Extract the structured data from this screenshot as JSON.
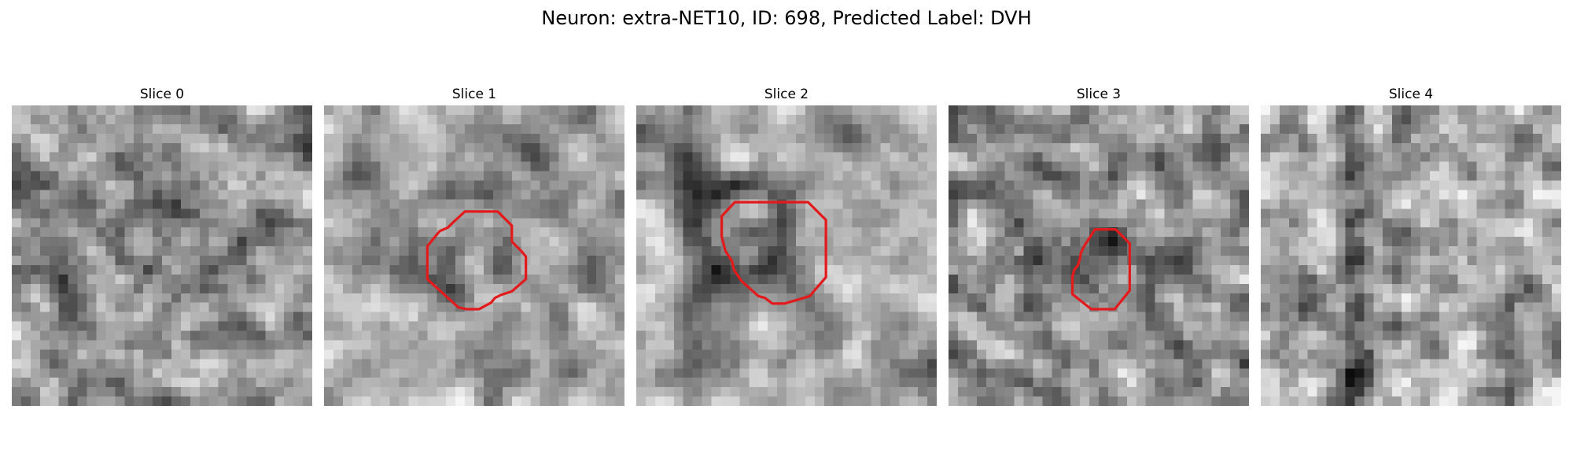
{
  "figure": {
    "title": "Neuron: extra-NET10, ID: 698, Predicted Label: DVH"
  },
  "slices": [
    {
      "title": "Slice 0",
      "has_outline": false
    },
    {
      "title": "Slice 1",
      "has_outline": true
    },
    {
      "title": "Slice 2",
      "has_outline": true
    },
    {
      "title": "Slice 3",
      "has_outline": true
    },
    {
      "title": "Slice 4",
      "has_outline": false
    }
  ],
  "style": {
    "outline_color": "#e31a1c"
  }
}
